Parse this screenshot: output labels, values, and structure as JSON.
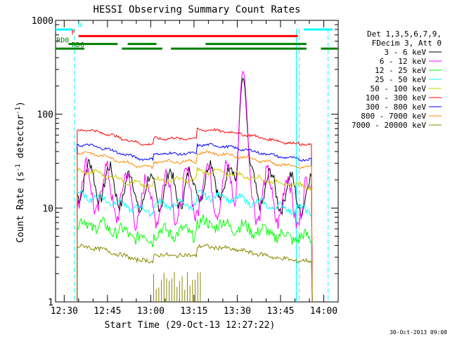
{
  "chart_data": {
    "type": "line",
    "title": "HESSI Observing Summary Count Rates",
    "xlabel": "Start Time (29-Oct-13 12:27:22)",
    "ylabel_main": "Count Rate (s",
    "ylabel_sup1": "-1",
    "ylabel_mid": " detector",
    "ylabel_sup2": "-1",
    "ylabel_end": ")",
    "y_scale": "log",
    "ylim": [
      1,
      1000
    ],
    "xlim_minutes": [
      -3,
      95
    ],
    "x_ticks": [
      {
        "label": "12:30",
        "minute": 0
      },
      {
        "label": "12:45",
        "minute": 15
      },
      {
        "label": "13:00",
        "minute": 30
      },
      {
        "label": "13:15",
        "minute": 45
      },
      {
        "label": "13:30",
        "minute": 60
      },
      {
        "label": "13:45",
        "minute": 75
      },
      {
        "label": "14:00",
        "minute": 90
      }
    ],
    "y_ticks": [
      {
        "label": "1",
        "value": 1
      },
      {
        "label": "10",
        "value": 10
      },
      {
        "label": "100",
        "value": 100
      },
      {
        "label": "1000",
        "value": 1000
      }
    ],
    "legend_header": [
      "Det 1,3,5,6,7,9,",
      "FDecim 3, Att 0"
    ],
    "legend_position": "right",
    "series": [
      {
        "name": "3 - 6 keV",
        "color": "#000000",
        "base": 17,
        "osc": 0.45,
        "noise": 0.15
      },
      {
        "name": "6 - 12 keV",
        "color": "#ff00ff",
        "base": 14,
        "osc": 0.6,
        "noise": 0.22
      },
      {
        "name": "12 - 25 keV",
        "color": "#00ff00",
        "base": 5.8,
        "osc": 0.1,
        "noise": 0.15
      },
      {
        "name": "25 - 50 keV",
        "color": "#00ffff",
        "base": 11.5,
        "osc": 0.08,
        "noise": 0.07
      },
      {
        "name": "50 - 100 keV",
        "color": "#cccc00",
        "base": 21,
        "osc": 0.05,
        "noise": 0.05
      },
      {
        "name": "100 - 300 keV",
        "color": "#ff0000",
        "base": 58,
        "osc": 0.02,
        "noise": 0.03
      },
      {
        "name": "300 - 800 keV",
        "color": "#0000ff",
        "base": 40,
        "osc": 0.02,
        "noise": 0.03
      },
      {
        "name": "800 - 7000 keV",
        "color": "#ff8800",
        "base": 33,
        "osc": 0.03,
        "noise": 0.03
      },
      {
        "name": "7000 - 20000 keV",
        "color": "#888800",
        "base": 3.3,
        "osc": 0.02,
        "noise": 0.05
      }
    ],
    "flag_bars": [
      {
        "label": "",
        "color": "#00ffff",
        "y_level": 800,
        "segments": [
          [
            -3,
            3
          ],
          [
            83,
            93
          ]
        ]
      },
      {
        "label": "N",
        "color": "#00ffff",
        "y_level": 820,
        "segments": []
      },
      {
        "label": "F",
        "color": "#ff0000",
        "y_level": 680,
        "segments": [
          [
            5,
            81
          ]
        ]
      },
      {
        "label": "RD0",
        "color": "#008000",
        "y_level": 560,
        "segments": [
          [
            1.5,
            18.5
          ],
          [
            22,
            32
          ],
          [
            49,
            84
          ]
        ]
      },
      {
        "label": "RD6",
        "color": "#008000",
        "y_level": 500,
        "segments": [
          [
            -3,
            7
          ],
          [
            20,
            34
          ],
          [
            37,
            84
          ],
          [
            89,
            95
          ]
        ]
      }
    ],
    "attenuator_lines_minutes": [
      3.5,
      81.5,
      91.5
    ],
    "eclipse_edges_minutes": [
      8.0,
      76.0,
      82.5
    ],
    "flare_peak_minute": 62,
    "flare_peak_rate": 270
  },
  "footer": {
    "timestamp": "30-Oct-2013 09:08"
  }
}
